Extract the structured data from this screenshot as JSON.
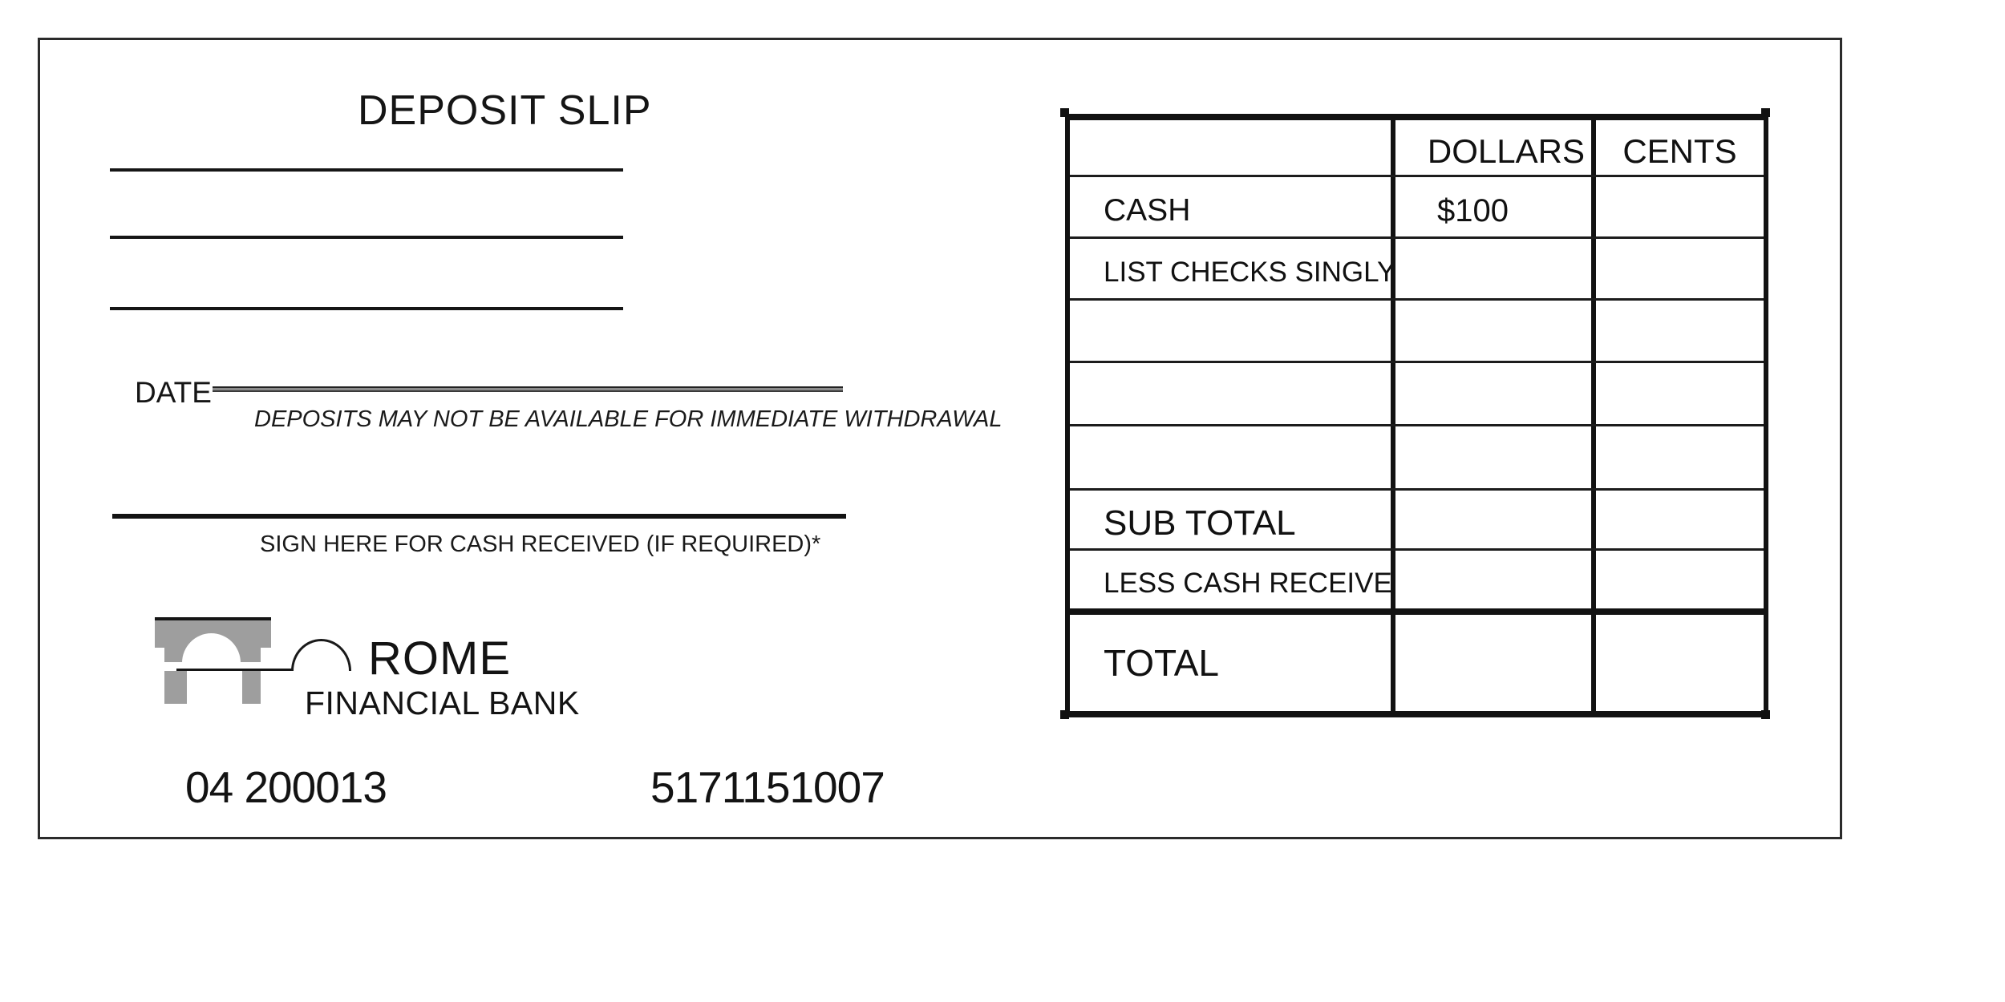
{
  "slip": {
    "title": "DEPOSIT SLIP",
    "date_label": "DATE",
    "withdrawal_notice": "DEPOSITS MAY NOT BE AVAILABLE FOR IMMEDIATE WITHDRAWAL",
    "sign_here_label": "SIGN HERE FOR CASH RECEIVED (IF REQUIRED)*"
  },
  "bank": {
    "name": "ROME",
    "subtitle": "FINANCIAL BANK",
    "logo_icon": "aqueduct-arch-icon",
    "logo_color": "#9e9e9e"
  },
  "footer_numbers": {
    "branch_code": "04 200013",
    "account_number": "5171151007"
  },
  "table": {
    "header": {
      "label": "",
      "dollars": "DOLLARS",
      "cents": "CENTS"
    },
    "rows": [
      {
        "label": "CASH",
        "dollars": "$100",
        "cents": ""
      },
      {
        "label": "LIST CHECKS SINGLY",
        "dollars": "",
        "cents": ""
      },
      {
        "label": "",
        "dollars": "",
        "cents": ""
      },
      {
        "label": "",
        "dollars": "",
        "cents": ""
      },
      {
        "label": "",
        "dollars": "",
        "cents": ""
      },
      {
        "label": "SUB TOTAL",
        "dollars": "",
        "cents": ""
      },
      {
        "label": "LESS CASH RECEIVED",
        "dollars": "",
        "cents": ""
      },
      {
        "label": "TOTAL",
        "dollars": "",
        "cents": ""
      }
    ]
  },
  "colors": {
    "ink": "#111111",
    "logo_gray": "#9e9e9e",
    "paper": "#ffffff"
  }
}
